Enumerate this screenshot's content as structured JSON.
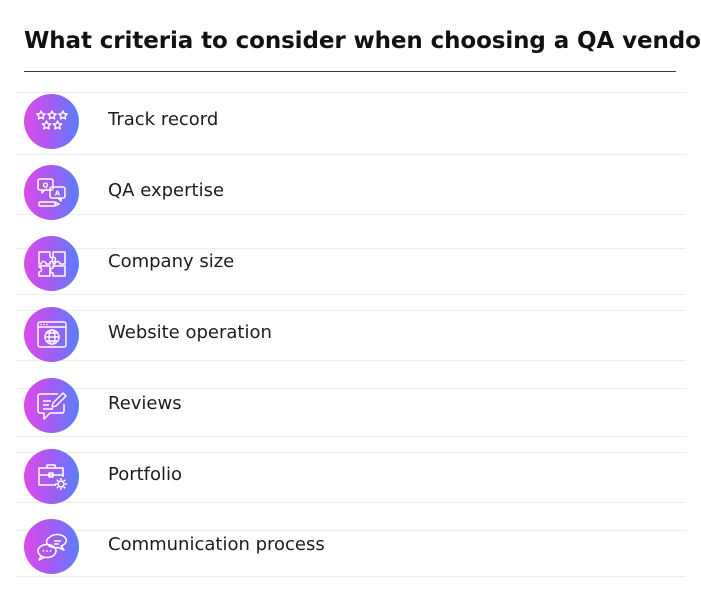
{
  "title": "What criteria to consider when choosing a QA vendor?",
  "items": [
    {
      "label": "Track record",
      "icon": "stars-icon"
    },
    {
      "label": "QA expertise",
      "icon": "qa-chat-icon"
    },
    {
      "label": "Company size",
      "icon": "puzzle-icon"
    },
    {
      "label": "Website operation",
      "icon": "browser-globe-icon"
    },
    {
      "label": "Reviews",
      "icon": "review-edit-icon"
    },
    {
      "label": "Portfolio",
      "icon": "briefcase-gear-icon"
    },
    {
      "label": "Communication process",
      "icon": "chat-bubbles-icon"
    }
  ],
  "colors": {
    "badge_start": "#dd4bea",
    "badge_end": "#5a7ffb",
    "text": "#1c1c1c",
    "rule": "#3a3a3a"
  }
}
